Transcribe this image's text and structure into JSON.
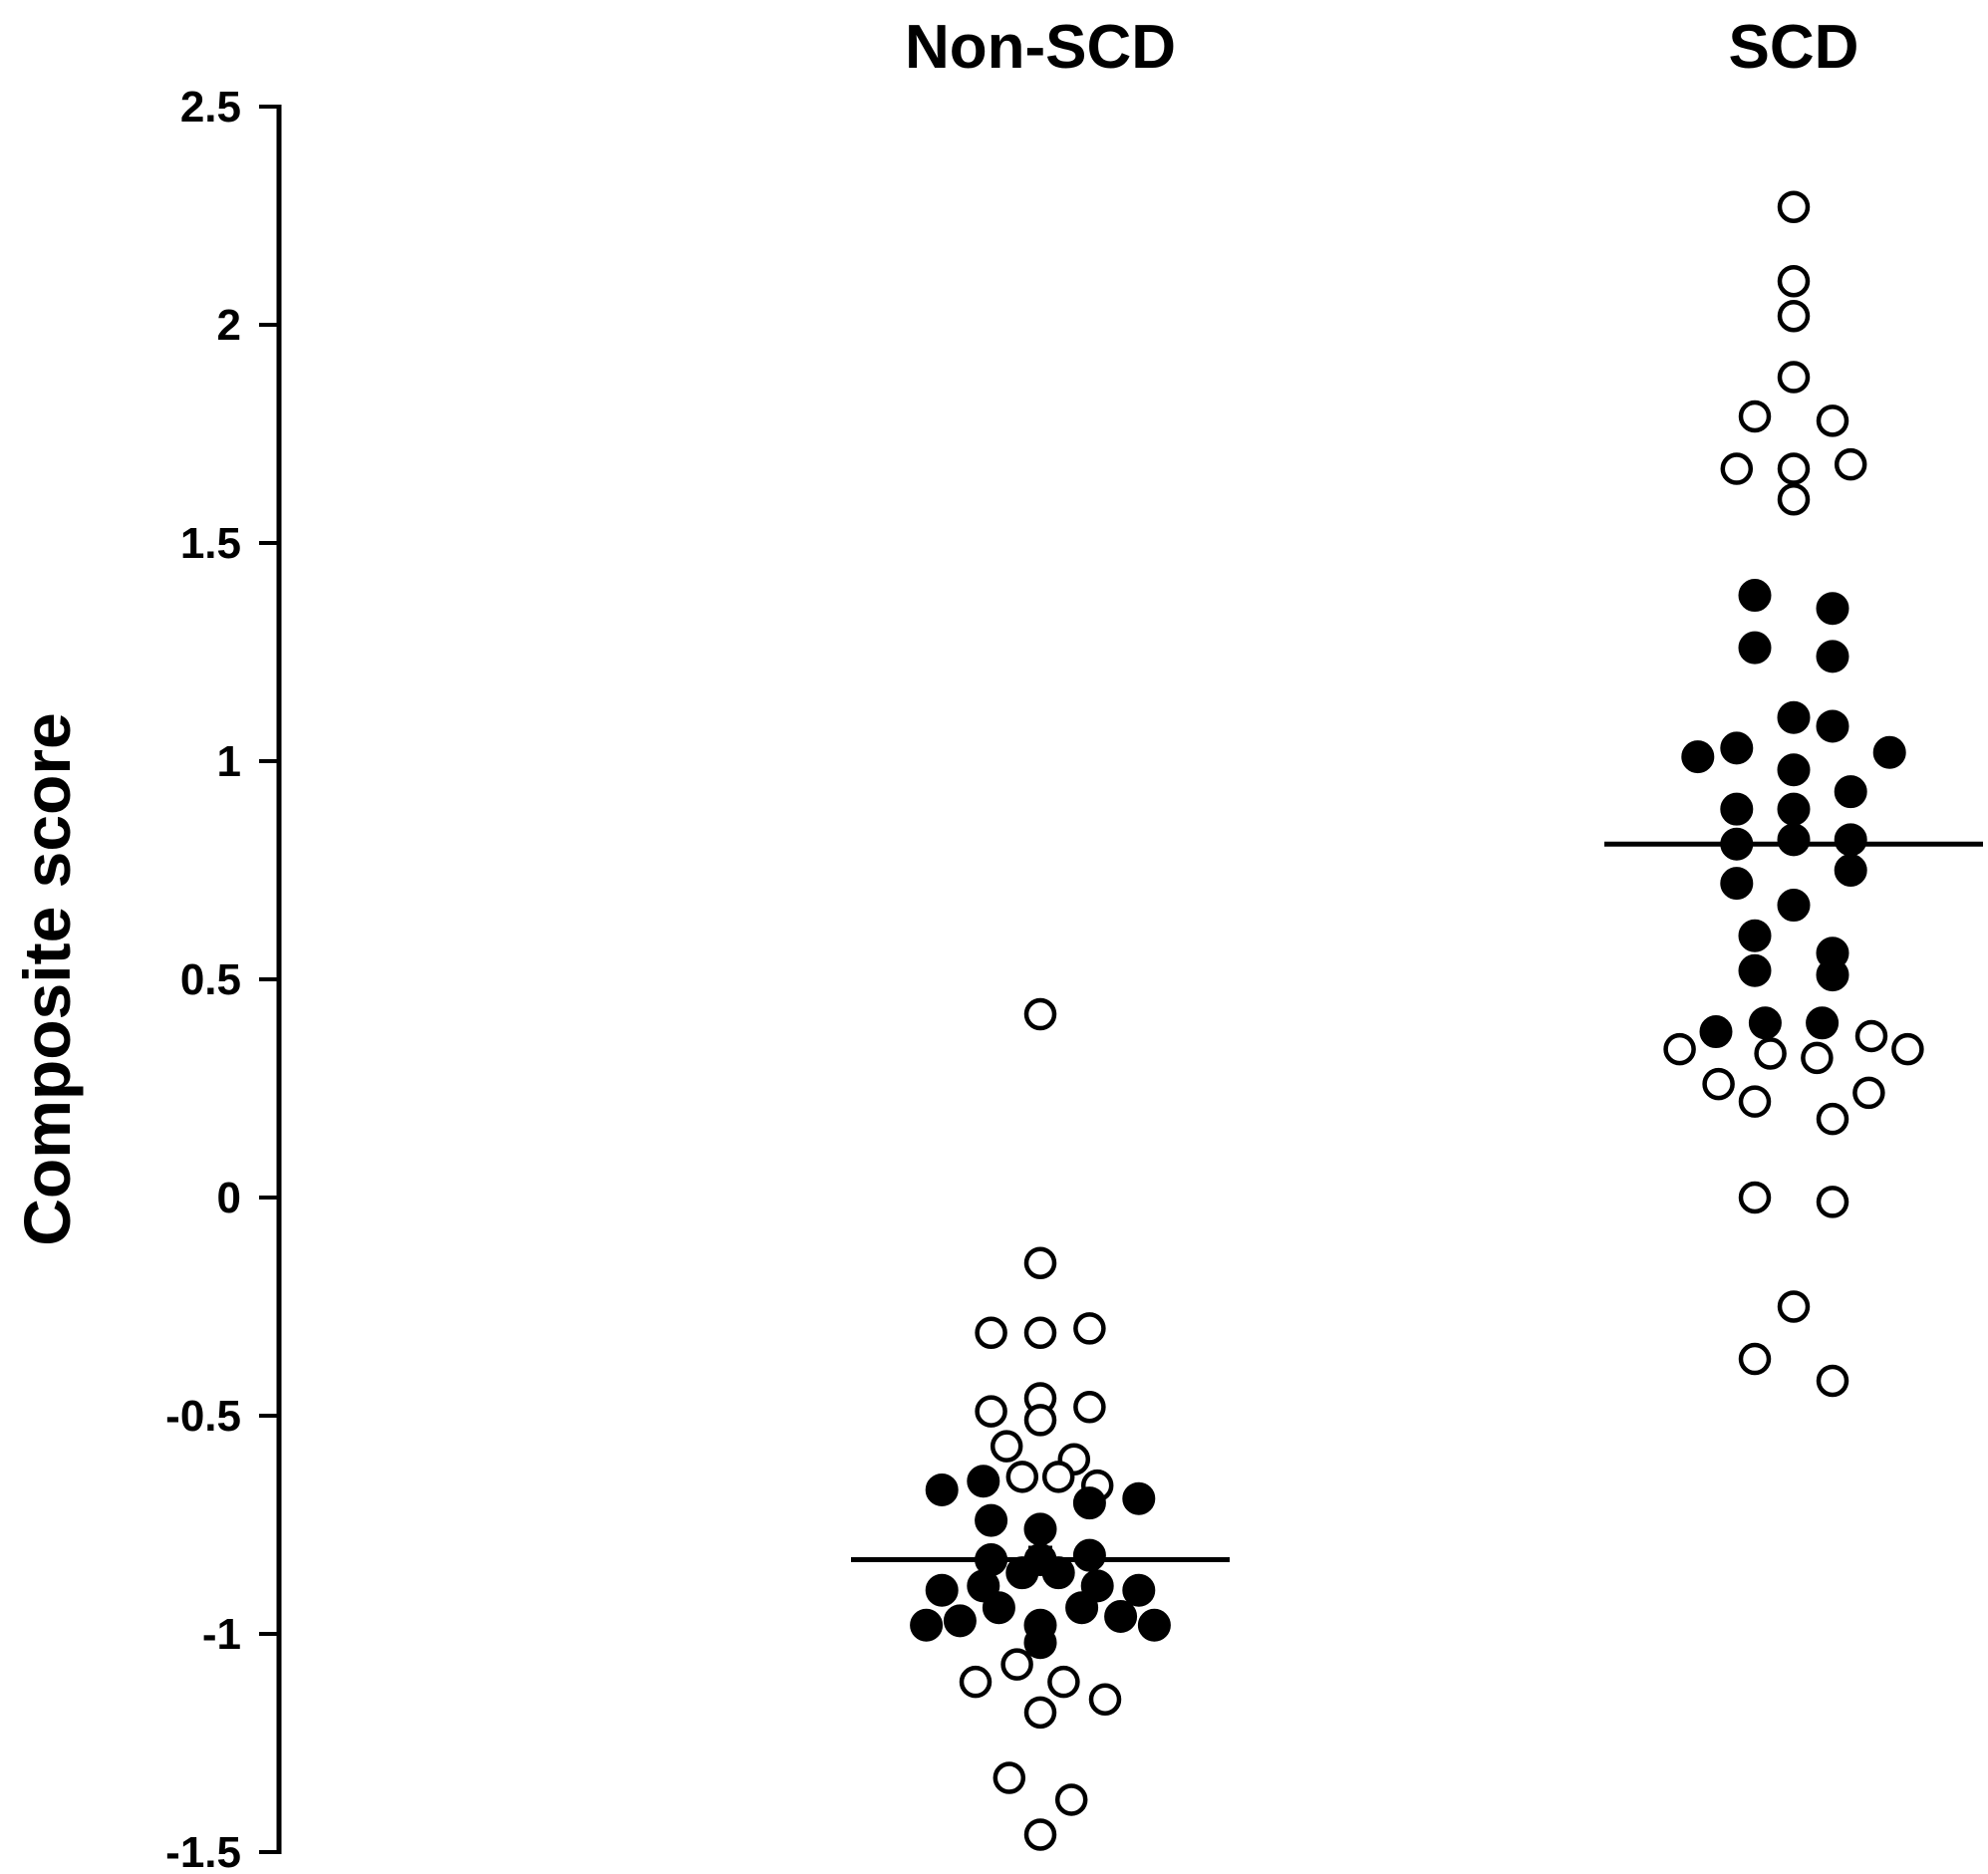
{
  "chart_data": {
    "type": "scatter",
    "subtype": "dot-plot",
    "title": "",
    "xlabel": "",
    "ylabel": "Composite score",
    "ylim": [
      -1.5,
      2.5
    ],
    "yticks": [
      "2.5",
      "2",
      "1.5",
      "1",
      "0.5",
      "0",
      "-0.5",
      "-1",
      "-1.5"
    ],
    "grid": false,
    "legend": "none",
    "colors": {
      "filled": "#000000",
      "open_fill": "#ffffff",
      "stroke": "#000000"
    },
    "groups": [
      {
        "name": "Non-SCD",
        "mean": -0.83,
        "points": [
          {
            "x": 0.0,
            "y": 0.42,
            "filled": false
          },
          {
            "x": 0.0,
            "y": -0.15,
            "filled": false
          },
          {
            "x": -0.19,
            "y": -0.31,
            "filled": false
          },
          {
            "x": 0.0,
            "y": -0.31,
            "filled": false
          },
          {
            "x": 0.19,
            "y": -0.3,
            "filled": false
          },
          {
            "x": 0.0,
            "y": -0.46,
            "filled": false
          },
          {
            "x": -0.19,
            "y": -0.49,
            "filled": false
          },
          {
            "x": 0.0,
            "y": -0.51,
            "filled": false
          },
          {
            "x": 0.19,
            "y": -0.48,
            "filled": false
          },
          {
            "x": -0.13,
            "y": -0.57,
            "filled": false
          },
          {
            "x": 0.13,
            "y": -0.6,
            "filled": false
          },
          {
            "x": -0.07,
            "y": -0.64,
            "filled": false
          },
          {
            "x": 0.07,
            "y": -0.64,
            "filled": false
          },
          {
            "x": 0.22,
            "y": -0.66,
            "filled": false
          },
          {
            "x": -0.38,
            "y": -0.67,
            "filled": true
          },
          {
            "x": -0.22,
            "y": -0.65,
            "filled": true
          },
          {
            "x": 0.19,
            "y": -0.7,
            "filled": true
          },
          {
            "x": 0.38,
            "y": -0.69,
            "filled": true
          },
          {
            "x": -0.19,
            "y": -0.74,
            "filled": true
          },
          {
            "x": 0.0,
            "y": -0.76,
            "filled": true
          },
          {
            "x": -0.19,
            "y": -0.83,
            "filled": true
          },
          {
            "x": -0.07,
            "y": -0.86,
            "filled": true
          },
          {
            "x": 0.0,
            "y": -0.83,
            "filled": true
          },
          {
            "x": 0.07,
            "y": -0.86,
            "filled": true
          },
          {
            "x": 0.19,
            "y": -0.82,
            "filled": true
          },
          {
            "x": -0.38,
            "y": -0.9,
            "filled": true
          },
          {
            "x": -0.22,
            "y": -0.89,
            "filled": true
          },
          {
            "x": -0.16,
            "y": -0.94,
            "filled": true
          },
          {
            "x": 0.16,
            "y": -0.94,
            "filled": true
          },
          {
            "x": 0.22,
            "y": -0.89,
            "filled": true
          },
          {
            "x": 0.38,
            "y": -0.9,
            "filled": true
          },
          {
            "x": -0.44,
            "y": -0.98,
            "filled": true
          },
          {
            "x": -0.31,
            "y": -0.97,
            "filled": true
          },
          {
            "x": 0.0,
            "y": -0.98,
            "filled": true
          },
          {
            "x": 0.0,
            "y": -1.02,
            "filled": true
          },
          {
            "x": 0.31,
            "y": -0.96,
            "filled": true
          },
          {
            "x": 0.44,
            "y": -0.98,
            "filled": true
          },
          {
            "x": -0.09,
            "y": -1.07,
            "filled": false
          },
          {
            "x": -0.25,
            "y": -1.11,
            "filled": false
          },
          {
            "x": 0.09,
            "y": -1.11,
            "filled": false
          },
          {
            "x": 0.25,
            "y": -1.15,
            "filled": false
          },
          {
            "x": 0.0,
            "y": -1.18,
            "filled": false
          },
          {
            "x": -0.12,
            "y": -1.33,
            "filled": false
          },
          {
            "x": 0.12,
            "y": -1.38,
            "filled": false
          },
          {
            "x": 0.0,
            "y": -1.46,
            "filled": false
          }
        ]
      },
      {
        "name": "SCD",
        "mean": 0.81,
        "points": [
          {
            "x": 0.0,
            "y": 2.27,
            "filled": false
          },
          {
            "x": 0.0,
            "y": 2.1,
            "filled": false
          },
          {
            "x": 0.0,
            "y": 2.02,
            "filled": false
          },
          {
            "x": 0.0,
            "y": 1.88,
            "filled": false
          },
          {
            "x": -0.15,
            "y": 1.79,
            "filled": false
          },
          {
            "x": 0.15,
            "y": 1.78,
            "filled": false
          },
          {
            "x": -0.22,
            "y": 1.67,
            "filled": false
          },
          {
            "x": 0.0,
            "y": 1.67,
            "filled": false
          },
          {
            "x": 0.22,
            "y": 1.68,
            "filled": false
          },
          {
            "x": 0.0,
            "y": 1.6,
            "filled": false
          },
          {
            "x": -0.15,
            "y": 1.38,
            "filled": true
          },
          {
            "x": 0.15,
            "y": 1.35,
            "filled": true
          },
          {
            "x": -0.15,
            "y": 1.26,
            "filled": true
          },
          {
            "x": 0.15,
            "y": 1.24,
            "filled": true
          },
          {
            "x": 0.0,
            "y": 1.1,
            "filled": true
          },
          {
            "x": 0.15,
            "y": 1.08,
            "filled": true
          },
          {
            "x": -0.37,
            "y": 1.01,
            "filled": true
          },
          {
            "x": -0.22,
            "y": 1.03,
            "filled": true
          },
          {
            "x": 0.0,
            "y": 0.98,
            "filled": true
          },
          {
            "x": 0.37,
            "y": 1.02,
            "filled": true
          },
          {
            "x": -0.22,
            "y": 0.89,
            "filled": true
          },
          {
            "x": 0.0,
            "y": 0.89,
            "filled": true
          },
          {
            "x": 0.22,
            "y": 0.93,
            "filled": true
          },
          {
            "x": -0.22,
            "y": 0.81,
            "filled": true
          },
          {
            "x": 0.0,
            "y": 0.82,
            "filled": true
          },
          {
            "x": 0.22,
            "y": 0.82,
            "filled": true
          },
          {
            "x": -0.22,
            "y": 0.72,
            "filled": true
          },
          {
            "x": 0.0,
            "y": 0.67,
            "filled": true
          },
          {
            "x": 0.22,
            "y": 0.75,
            "filled": true
          },
          {
            "x": -0.15,
            "y": 0.6,
            "filled": true
          },
          {
            "x": 0.15,
            "y": 0.56,
            "filled": true
          },
          {
            "x": -0.15,
            "y": 0.52,
            "filled": true
          },
          {
            "x": 0.15,
            "y": 0.51,
            "filled": true
          },
          {
            "x": -0.3,
            "y": 0.38,
            "filled": true
          },
          {
            "x": -0.11,
            "y": 0.4,
            "filled": true
          },
          {
            "x": 0.11,
            "y": 0.4,
            "filled": true
          },
          {
            "x": -0.44,
            "y": 0.34,
            "filled": false
          },
          {
            "x": -0.09,
            "y": 0.33,
            "filled": false
          },
          {
            "x": 0.09,
            "y": 0.32,
            "filled": false
          },
          {
            "x": 0.3,
            "y": 0.37,
            "filled": false
          },
          {
            "x": 0.44,
            "y": 0.34,
            "filled": false
          },
          {
            "x": -0.29,
            "y": 0.26,
            "filled": false
          },
          {
            "x": -0.15,
            "y": 0.22,
            "filled": false
          },
          {
            "x": 0.15,
            "y": 0.18,
            "filled": false
          },
          {
            "x": 0.29,
            "y": 0.24,
            "filled": false
          },
          {
            "x": -0.15,
            "y": 0.0,
            "filled": false
          },
          {
            "x": 0.15,
            "y": -0.01,
            "filled": false
          },
          {
            "x": 0.0,
            "y": -0.25,
            "filled": false
          },
          {
            "x": -0.15,
            "y": -0.37,
            "filled": false
          },
          {
            "x": 0.15,
            "y": -0.42,
            "filled": false
          }
        ]
      }
    ]
  }
}
